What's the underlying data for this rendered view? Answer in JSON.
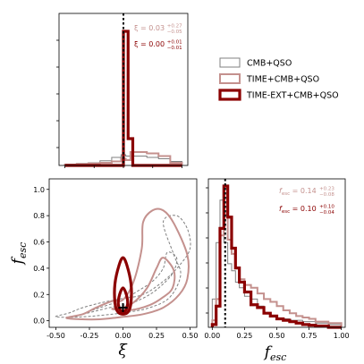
{
  "colors": {
    "cmb_qso": "#808080",
    "time_cmb_qso": "#c4918e",
    "time_ext": "#8b0000"
  },
  "legend": {
    "items": [
      {
        "label": "CMB+QSO",
        "color": "#808080",
        "width": 1
      },
      {
        "label": "TIME+CMB+QSO",
        "color": "#c4918e",
        "width": 2
      },
      {
        "label": "TIME-EXT+CMB+QSO",
        "color": "#8b0000",
        "width": 3.2
      }
    ],
    "placement": "upper-right"
  },
  "annotations": {
    "xi_time": {
      "base": "ξ = 0.03",
      "sup": "+0.27",
      "sub": "−0.05",
      "color": "#c4918e"
    },
    "xi_ext": {
      "base": "ξ = 0.00",
      "sup": "+0.01",
      "sub": "−0.01",
      "color": "#8b0000"
    },
    "fesc_time": {
      "base": "f",
      "subs": "esc",
      "rest": " = 0.14",
      "sup": "+0.23",
      "sub": "−0.08",
      "color": "#c4918e"
    },
    "fesc_ext": {
      "base": "f",
      "subs": "esc",
      "rest": " = 0.10",
      "sup": "+0.10",
      "sub": "−0.04",
      "color": "#8b0000"
    }
  },
  "labels": {
    "x_xi": "ξ",
    "x_fesc_base": "f",
    "x_fesc_sub": "esc",
    "y_fesc_base": "f",
    "y_fesc_sub": "esc"
  },
  "chart_data": [
    {
      "type": "histogram",
      "panel": "top-left: ξ marginal",
      "xlim": [
        -0.55,
        0.55
      ],
      "xticks": [
        "-0.50",
        "-0.25",
        "0.00",
        "0.25",
        "0.50"
      ],
      "series": [
        {
          "name": "CMB+QSO",
          "edges": [
            -0.5,
            -0.4,
            -0.3,
            -0.2,
            -0.1,
            -0.02,
            0.02,
            0.06,
            0.2,
            0.3,
            0.4,
            0.5
          ],
          "heights": [
            0.01,
            0.015,
            0.02,
            0.035,
            0.06,
            0.08,
            0.07,
            0.07,
            0.06,
            0.05,
            0.03
          ]
        },
        {
          "name": "TIME+CMB+QSO",
          "edges": [
            -0.5,
            -0.4,
            -0.3,
            -0.2,
            -0.1,
            -0.02,
            0.02,
            0.06,
            0.2,
            0.3,
            0.4,
            0.5
          ],
          "heights": [
            0.005,
            0.01,
            0.015,
            0.02,
            0.03,
            0.05,
            0.04,
            0.1,
            0.09,
            0.07,
            0.02
          ]
        },
        {
          "name": "TIME-EXT+CMB+QSO",
          "edges": [
            -0.5,
            -0.02,
            0.0,
            0.04,
            0.08,
            0.5
          ],
          "heights": [
            0.0,
            0.0,
            1.0,
            0.2,
            0.0
          ]
        }
      ],
      "vline": 0.0
    },
    {
      "type": "contour",
      "panel": "bottom-left: ξ vs f_esc",
      "xlim": [
        -0.55,
        0.55
      ],
      "ylim": [
        -0.05,
        1.08
      ],
      "xticks": [
        "-0.50",
        "-0.25",
        "0.00",
        "0.25",
        "0.50"
      ],
      "yticks": [
        "0.0",
        "0.2",
        "0.4",
        "0.6",
        "0.8",
        "1.0"
      ],
      "series": [
        {
          "name": "CMB+QSO",
          "contours": [
            [
              [
                -0.5,
                0.03
              ],
              [
                -0.4,
                0.06
              ],
              [
                -0.3,
                0.1
              ],
              [
                -0.15,
                0.14
              ],
              [
                0.0,
                0.17
              ],
              [
                0.15,
                0.2
              ],
              [
                0.3,
                0.3
              ],
              [
                0.42,
                0.42
              ],
              [
                0.5,
                0.55
              ],
              [
                0.48,
                0.7
              ],
              [
                0.4,
                0.8
              ],
              [
                0.3,
                0.75
              ],
              [
                0.38,
                0.5
              ],
              [
                0.43,
                0.35
              ],
              [
                0.35,
                0.18
              ],
              [
                0.2,
                0.1
              ],
              [
                0.0,
                0.06
              ],
              [
                -0.3,
                0.03
              ],
              [
                -0.5,
                0.03
              ]
            ],
            [
              [
                -0.3,
                0.05
              ],
              [
                -0.1,
                0.1
              ],
              [
                0.05,
                0.13
              ],
              [
                0.2,
                0.2
              ],
              [
                0.32,
                0.3
              ],
              [
                0.38,
                0.38
              ],
              [
                0.4,
                0.48
              ],
              [
                0.33,
                0.52
              ],
              [
                0.3,
                0.4
              ],
              [
                0.22,
                0.3
              ],
              [
                0.1,
                0.22
              ],
              [
                0.0,
                0.16
              ],
              [
                -0.2,
                0.09
              ],
              [
                -0.3,
                0.05
              ]
            ]
          ]
        },
        {
          "name": "TIME+CMB+QSO",
          "contours": [
            [
              [
                -0.42,
                0.02
              ],
              [
                -0.3,
                0.05
              ],
              [
                -0.2,
                0.1
              ],
              [
                -0.08,
                0.15
              ],
              [
                0.0,
                0.16
              ],
              [
                0.08,
                0.3
              ],
              [
                0.14,
                0.55
              ],
              [
                0.15,
                0.75
              ],
              [
                0.22,
                0.84
              ],
              [
                0.3,
                0.84
              ],
              [
                0.38,
                0.74
              ],
              [
                0.48,
                0.5
              ],
              [
                0.48,
                0.32
              ],
              [
                0.42,
                0.2
              ],
              [
                0.3,
                0.1
              ],
              [
                0.15,
                0.05
              ],
              [
                0.0,
                0.03
              ],
              [
                -0.2,
                0.01
              ],
              [
                -0.42,
                0.02
              ]
            ],
            [
              [
                -0.08,
                0.09
              ],
              [
                0.0,
                0.1
              ],
              [
                0.08,
                0.14
              ],
              [
                0.18,
                0.25
              ],
              [
                0.25,
                0.4
              ],
              [
                0.3,
                0.48
              ],
              [
                0.38,
                0.38
              ],
              [
                0.37,
                0.25
              ],
              [
                0.3,
                0.18
              ],
              [
                0.2,
                0.12
              ],
              [
                0.05,
                0.08
              ],
              [
                -0.08,
                0.09
              ]
            ]
          ]
        },
        {
          "name": "TIME-EXT+CMB+QSO",
          "contours": [
            [
              [
                0.0,
                0.48
              ],
              [
                0.03,
                0.42
              ],
              [
                0.06,
                0.28
              ],
              [
                0.06,
                0.14
              ],
              [
                0.04,
                0.07
              ],
              [
                0.0,
                0.05
              ],
              [
                -0.04,
                0.07
              ],
              [
                -0.06,
                0.14
              ],
              [
                -0.06,
                0.28
              ],
              [
                -0.03,
                0.42
              ],
              [
                0.0,
                0.48
              ]
            ],
            [
              [
                0.0,
                0.25
              ],
              [
                0.025,
                0.2
              ],
              [
                0.035,
                0.13
              ],
              [
                0.02,
                0.08
              ],
              [
                0.0,
                0.07
              ],
              [
                -0.02,
                0.08
              ],
              [
                -0.035,
                0.13
              ],
              [
                -0.025,
                0.2
              ],
              [
                0.0,
                0.25
              ]
            ]
          ]
        }
      ],
      "marker": {
        "x": 0.0,
        "y": 0.1,
        "shape": "plus"
      }
    },
    {
      "type": "histogram",
      "panel": "bottom-right: f_esc marginal",
      "xlim": [
        -0.03,
        1.03
      ],
      "xticks": [
        "0.00",
        "0.25",
        "0.50",
        "0.75",
        "1.00"
      ],
      "series": [
        {
          "name": "CMB+QSO",
          "edges": [
            0.0,
            0.03,
            0.06,
            0.09,
            0.12,
            0.15,
            0.18,
            0.21,
            0.25,
            0.3,
            0.35,
            0.4,
            0.45,
            0.5,
            0.6,
            0.7,
            0.8,
            0.9,
            1.0
          ],
          "heights": [
            0.2,
            0.6,
            0.9,
            0.6,
            0.45,
            0.4,
            0.32,
            0.28,
            0.22,
            0.2,
            0.15,
            0.1,
            0.08,
            0.06,
            0.05,
            0.04,
            0.03,
            0.02
          ]
        },
        {
          "name": "TIME+CMB+QSO",
          "edges": [
            0.0,
            0.03,
            0.06,
            0.09,
            0.12,
            0.15,
            0.18,
            0.21,
            0.25,
            0.3,
            0.35,
            0.4,
            0.45,
            0.5,
            0.55,
            0.6,
            0.65,
            0.7,
            0.75,
            0.8,
            0.9,
            1.0
          ],
          "heights": [
            0.05,
            0.2,
            0.65,
            0.8,
            0.62,
            0.52,
            0.42,
            0.34,
            0.3,
            0.28,
            0.24,
            0.2,
            0.18,
            0.15,
            0.12,
            0.1,
            0.08,
            0.07,
            0.06,
            0.04,
            0.03
          ]
        },
        {
          "name": "TIME-EXT+CMB+QSO",
          "edges": [
            0.0,
            0.03,
            0.06,
            0.09,
            0.12,
            0.15,
            0.18,
            0.21,
            0.25,
            0.3,
            0.35,
            0.4,
            0.45,
            0.5,
            0.55,
            0.6,
            0.65,
            0.7,
            0.75,
            0.8,
            0.9,
            1.0
          ],
          "heights": [
            0.02,
            0.15,
            0.7,
            1.0,
            0.78,
            0.56,
            0.42,
            0.32,
            0.25,
            0.16,
            0.14,
            0.1,
            0.08,
            0.06,
            0.05,
            0.04,
            0.03,
            0.02,
            0.015,
            0.01,
            0.0
          ]
        }
      ],
      "vline": 0.1
    }
  ]
}
